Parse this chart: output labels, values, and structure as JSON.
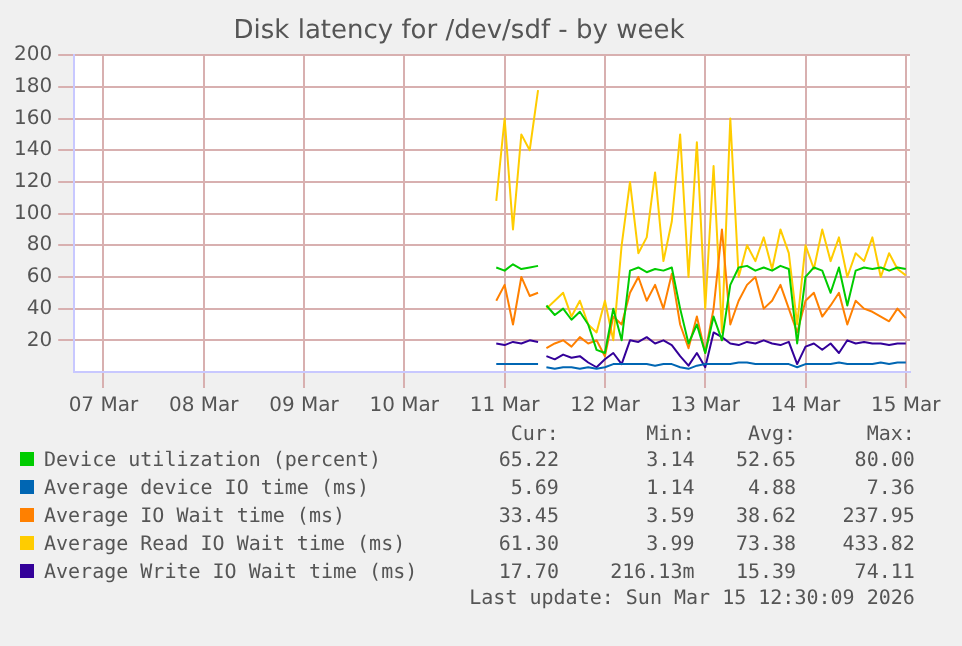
{
  "chart_data": {
    "type": "line",
    "title": "Disk latency for /dev/sdf - by week",
    "x": [
      "2026-03-11T10:00",
      "2026-03-11T12:00",
      "2026-03-11T14:00",
      "2026-03-11T16:00",
      "2026-03-11T18:00",
      "2026-03-11T20:00",
      "2026-03-11T21:00",
      "2026-03-11T22:00",
      "2026-03-12T00:00",
      "2026-03-12T02:00",
      "2026-03-12T04:00",
      "2026-03-12T06:00",
      "2026-03-12T08:00",
      "2026-03-12T10:00",
      "2026-03-12T12:00",
      "2026-03-12T14:00",
      "2026-03-12T16:00",
      "2026-03-12T18:00",
      "2026-03-12T20:00",
      "2026-03-12T22:00",
      "2026-03-13T00:00",
      "2026-03-13T02:00",
      "2026-03-13T04:00",
      "2026-03-13T06:00",
      "2026-03-13T08:00",
      "2026-03-13T10:00",
      "2026-03-13T12:00",
      "2026-03-13T14:00",
      "2026-03-13T16:00",
      "2026-03-13T18:00",
      "2026-03-13T20:00",
      "2026-03-13T22:00",
      "2026-03-14T00:00",
      "2026-03-14T02:00",
      "2026-03-14T04:00",
      "2026-03-14T06:00",
      "2026-03-14T08:00",
      "2026-03-14T10:00",
      "2026-03-14T12:00",
      "2026-03-14T14:00",
      "2026-03-14T16:00",
      "2026-03-14T18:00",
      "2026-03-14T20:00",
      "2026-03-14T22:00",
      "2026-03-15T00:00",
      "2026-03-15T02:00",
      "2026-03-15T04:00",
      "2026-03-15T06:00",
      "2026-03-15T08:00",
      "2026-03-15T10:00",
      "2026-03-15T12:00"
    ],
    "series": [
      {
        "name": "Device utilization (percent)",
        "color": "#00cc00",
        "values": [
          66,
          64,
          68,
          65,
          66,
          67,
          null,
          42,
          36,
          40,
          33,
          38,
          30,
          14,
          12,
          40,
          20,
          64,
          66,
          63,
          65,
          64,
          66,
          40,
          18,
          30,
          12,
          35,
          20,
          55,
          66,
          67,
          64,
          66,
          64,
          67,
          65,
          18,
          60,
          66,
          64,
          50,
          66,
          42,
          64,
          66,
          65,
          66,
          64,
          66,
          65
        ]
      },
      {
        "name": "Average device IO time (ms)",
        "color": "#0066b3",
        "values": [
          5,
          5,
          5,
          5,
          5,
          5,
          null,
          3,
          2,
          3,
          3,
          2,
          3,
          2,
          3,
          5,
          5,
          5,
          5,
          5,
          4,
          5,
          5,
          3,
          2,
          4,
          5,
          5,
          5,
          5,
          6,
          6,
          5,
          5,
          5,
          5,
          5,
          3,
          5,
          5,
          5,
          5,
          6,
          5,
          5,
          5,
          5,
          6,
          5,
          6,
          6
        ]
      },
      {
        "name": "Average IO Wait time (ms)",
        "color": "#ff8000",
        "values": [
          45,
          55,
          30,
          60,
          48,
          50,
          null,
          15,
          18,
          20,
          16,
          22,
          18,
          20,
          10,
          35,
          30,
          50,
          60,
          45,
          55,
          40,
          62,
          30,
          15,
          35,
          12,
          40,
          90,
          30,
          45,
          55,
          60,
          40,
          45,
          55,
          40,
          25,
          45,
          50,
          35,
          42,
          50,
          30,
          45,
          40,
          38,
          35,
          32,
          40,
          34
        ]
      },
      {
        "name": "Average Read IO Wait time (ms)",
        "color": "#ffcc00",
        "values": [
          108,
          160,
          90,
          150,
          140,
          178,
          null,
          40,
          45,
          50,
          35,
          45,
          30,
          25,
          45,
          20,
          80,
          120,
          75,
          85,
          126,
          70,
          95,
          150,
          60,
          145,
          40,
          130,
          25,
          160,
          60,
          80,
          70,
          85,
          65,
          90,
          75,
          30,
          80,
          65,
          90,
          70,
          85,
          60,
          75,
          70,
          85,
          60,
          75,
          65,
          61
        ]
      },
      {
        "name": "Average Write IO Wait time (ms)",
        "color": "#330099",
        "values": [
          18,
          17,
          19,
          18,
          20,
          19,
          null,
          10,
          8,
          11,
          9,
          10,
          6,
          3,
          8,
          12,
          5,
          20,
          19,
          22,
          18,
          20,
          17,
          10,
          4,
          12,
          3,
          25,
          22,
          18,
          17,
          19,
          18,
          20,
          18,
          17,
          19,
          5,
          16,
          18,
          14,
          18,
          12,
          20,
          18,
          19,
          18,
          18,
          17,
          18,
          18
        ]
      }
    ],
    "xlim": [
      "2026-03-07T05:00",
      "2026-03-15T13:00"
    ],
    "xticks": [
      {
        "value": "2026-03-07T12:00",
        "label": "07 Mar"
      },
      {
        "value": "2026-03-08T12:00",
        "label": "08 Mar"
      },
      {
        "value": "2026-03-09T12:00",
        "label": "09 Mar"
      },
      {
        "value": "2026-03-10T12:00",
        "label": "10 Mar"
      },
      {
        "value": "2026-03-11T12:00",
        "label": "11 Mar"
      },
      {
        "value": "2026-03-12T12:00",
        "label": "12 Mar"
      },
      {
        "value": "2026-03-13T12:00",
        "label": "13 Mar"
      },
      {
        "value": "2026-03-14T12:00",
        "label": "14 Mar"
      },
      {
        "value": "2026-03-15T12:00",
        "label": "15 Mar"
      }
    ],
    "ylim": [
      0,
      200
    ],
    "yticks": [
      20,
      40,
      60,
      80,
      100,
      120,
      140,
      160,
      180,
      200
    ],
    "grid": true,
    "legend": "bottom",
    "marker": "none",
    "line_style": "solid",
    "annotations": [
      "Cur:",
      "Min:",
      "Avg:",
      "Max:",
      "65.22",
      "3.14",
      "52.65",
      "80.00",
      "5.69",
      "1.14",
      "4.88",
      "7.36",
      "33.45",
      "3.59",
      "38.62",
      "237.95",
      "61.30",
      "3.99",
      "73.38",
      "433.82",
      "17.70",
      "216.13m",
      "15.39",
      "74.11",
      "Last update: Sun Mar 15 12:30:09 2026"
    ]
  }
}
